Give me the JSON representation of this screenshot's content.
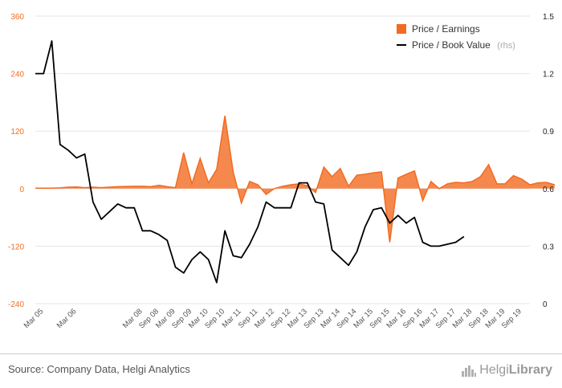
{
  "chart_data": {
    "type": "area+line",
    "left_axis": {
      "ticks": [
        "360",
        "240",
        "120",
        "0",
        "-120",
        "-240"
      ],
      "min": -240,
      "max": 360
    },
    "right_axis": {
      "ticks": [
        "1.5",
        "1.2",
        "0.9",
        "0.6",
        "0.3",
        "0"
      ],
      "min": 0,
      "max": 1.5
    },
    "x_labels": [
      "Mar 05",
      "Mar 06",
      "Mar 08",
      "Sep 08",
      "Mar 09",
      "Sep 09",
      "Mar 10",
      "Sep 10",
      "Mar 11",
      "Sep 11",
      "Mar 12",
      "Sep 12",
      "Mar 13",
      "Sep 13",
      "Mar 14",
      "Sep 14",
      "Mar 15",
      "Sep 15",
      "Mar 16",
      "Sep 16",
      "Mar 17",
      "Sep 17",
      "Mar 18",
      "Sep 18",
      "Mar 19",
      "Sep 19"
    ],
    "x_label_periods": [
      0,
      2,
      6,
      7,
      8,
      9,
      10,
      11,
      12,
      13,
      14,
      15,
      16,
      17,
      18,
      19,
      20,
      21,
      22,
      23,
      24,
      25,
      26,
      27,
      28,
      29
    ],
    "period_count": 30,
    "series": [
      {
        "name": "Price / Earnings",
        "axis": "left",
        "color": "#f26b21",
        "points": [
          [
            0,
            1
          ],
          [
            0.5,
            1
          ],
          [
            1,
            1
          ],
          [
            1.5,
            1.5
          ],
          [
            2,
            3
          ],
          [
            2.5,
            3.5
          ],
          [
            3,
            2
          ],
          [
            3.5,
            3
          ],
          [
            4,
            2
          ],
          [
            5,
            4
          ],
          [
            6,
            5
          ],
          [
            6.5,
            5
          ],
          [
            7,
            4
          ],
          [
            7.5,
            7
          ],
          [
            8,
            4
          ],
          [
            8.5,
            2
          ],
          [
            9,
            75
          ],
          [
            9.5,
            10
          ],
          [
            10,
            63
          ],
          [
            10.5,
            12
          ],
          [
            11,
            40
          ],
          [
            11.5,
            152
          ],
          [
            12,
            35
          ],
          [
            12.5,
            -30
          ],
          [
            13,
            15
          ],
          [
            13.5,
            8
          ],
          [
            14,
            -12
          ],
          [
            14.5,
            0
          ],
          [
            15,
            5
          ],
          [
            15.5,
            8
          ],
          [
            16,
            10
          ],
          [
            16.5,
            6
          ],
          [
            17,
            -8
          ],
          [
            17.5,
            45
          ],
          [
            18,
            25
          ],
          [
            18.5,
            42
          ],
          [
            19,
            5
          ],
          [
            19.5,
            28
          ],
          [
            20,
            30
          ],
          [
            20.5,
            33
          ],
          [
            21,
            35
          ],
          [
            21.5,
            -112
          ],
          [
            22,
            22
          ],
          [
            22.5,
            30
          ],
          [
            23,
            37
          ],
          [
            23.5,
            -25
          ],
          [
            24,
            15
          ],
          [
            24.5,
            0
          ],
          [
            25,
            10
          ],
          [
            25.5,
            13
          ],
          [
            26,
            12
          ],
          [
            26.5,
            15
          ],
          [
            27,
            25
          ],
          [
            27.5,
            50
          ],
          [
            28,
            10
          ],
          [
            28.5,
            10
          ],
          [
            29,
            27
          ],
          [
            29.5,
            20
          ],
          [
            30,
            8
          ],
          [
            30.5,
            12
          ],
          [
            31,
            13
          ],
          [
            31.5,
            8
          ]
        ]
      },
      {
        "name": "Price / Book Value",
        "axis": "right",
        "color": "#000000",
        "points": [
          [
            0,
            1.2
          ],
          [
            0.5,
            1.2
          ],
          [
            1,
            1.37
          ],
          [
            1.5,
            0.83
          ],
          [
            2,
            0.8
          ],
          [
            2.5,
            0.76
          ],
          [
            3,
            0.78
          ],
          [
            3.5,
            0.53
          ],
          [
            4,
            0.44
          ],
          [
            4.5,
            0.48
          ],
          [
            5,
            0.52
          ],
          [
            5.5,
            0.5
          ],
          [
            6,
            0.5
          ],
          [
            6.5,
            0.38
          ],
          [
            7,
            0.38
          ],
          [
            7.5,
            0.36
          ],
          [
            8,
            0.33
          ],
          [
            8.5,
            0.19
          ],
          [
            9,
            0.16
          ],
          [
            9.5,
            0.23
          ],
          [
            10,
            0.27
          ],
          [
            10.5,
            0.23
          ],
          [
            11,
            0.11
          ],
          [
            11.5,
            0.38
          ],
          [
            12,
            0.25
          ],
          [
            12.5,
            0.24
          ],
          [
            13,
            0.31
          ],
          [
            13.5,
            0.4
          ],
          [
            14,
            0.53
          ],
          [
            14.5,
            0.5
          ],
          [
            15,
            0.5
          ],
          [
            15.5,
            0.5
          ],
          [
            16,
            0.63
          ],
          [
            16.5,
            0.63
          ],
          [
            17,
            0.53
          ],
          [
            17.5,
            0.52
          ],
          [
            18,
            0.28
          ],
          [
            18.5,
            0.24
          ],
          [
            19,
            0.2
          ],
          [
            19.5,
            0.27
          ],
          [
            20,
            0.4
          ],
          [
            20.5,
            0.49
          ],
          [
            21,
            0.5
          ],
          [
            21.5,
            0.42
          ],
          [
            22,
            0.46
          ],
          [
            22.5,
            0.42
          ],
          [
            23,
            0.45
          ],
          [
            23.5,
            0.32
          ],
          [
            24,
            0.3
          ],
          [
            24.5,
            0.3
          ],
          [
            25,
            0.31
          ],
          [
            25.5,
            0.32
          ],
          [
            26,
            0.35
          ]
        ]
      }
    ],
    "legend": {
      "placement": "top-right",
      "items": [
        {
          "label": "Price / Earnings",
          "suffix": ""
        },
        {
          "label": "Price / Book Value",
          "suffix": "(rhs)"
        }
      ]
    },
    "grid": true
  },
  "footer": {
    "source": "Source: Company Data, Helgi Analytics",
    "logo_light": "Helgi",
    "logo_bold": "Library"
  }
}
